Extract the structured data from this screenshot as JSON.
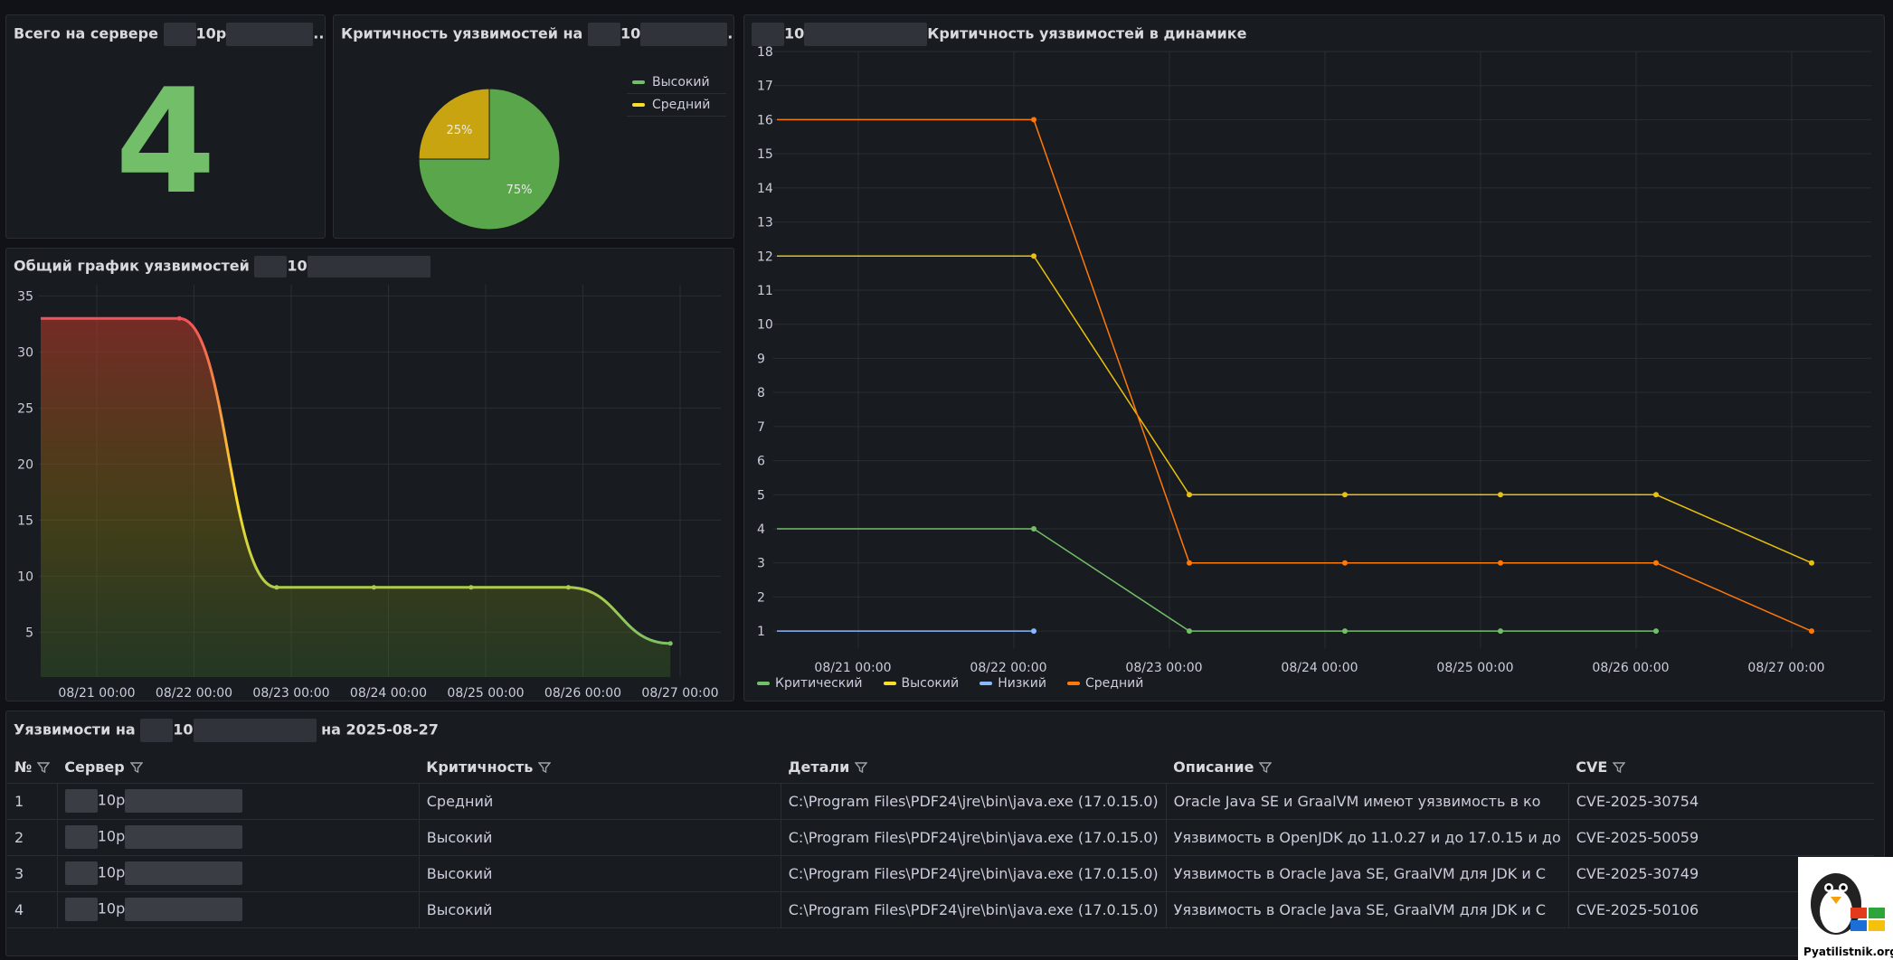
{
  "stat_panel": {
    "title": "Всего на сервере",
    "title_masked": "10р",
    "title_suffix": "...",
    "value": "4"
  },
  "pie_panel": {
    "title": "Критичность уязвимостей на",
    "title_masked": "10",
    "title_suffix": "...",
    "slice_labels": [
      "75%",
      "25%"
    ],
    "legend": [
      {
        "name": "Высокий",
        "color": "#73bf69"
      },
      {
        "name": "Средний",
        "color": "#fade2a"
      }
    ]
  },
  "area_panel": {
    "title": "Общий график уязвимостей",
    "title_masked": "10"
  },
  "dynamics_panel": {
    "title_masked": "10",
    "title": "Критичность уязвимостей в динамике",
    "legend": [
      {
        "name": "Критический",
        "color": "#73bf69"
      },
      {
        "name": "Высокий",
        "color": "#fade2a"
      },
      {
        "name": "Низкий",
        "color": "#8ab8ff"
      },
      {
        "name": "Средний",
        "color": "#ff780a"
      }
    ]
  },
  "table_panel": {
    "title_prefix": "Уязвимости на",
    "title_masked": "10",
    "title_suffix": "на 2025-08-27",
    "columns": [
      "№",
      "Сервер",
      "Критичность",
      "Детали",
      "Описание",
      "CVE"
    ],
    "rows": [
      {
        "num": "1",
        "server": "10р",
        "severity": "Средний",
        "details": "C:\\Program Files\\PDF24\\jre\\bin\\java.exe (17.0.15.0)",
        "description": "Oracle Java SE и GraalVM имеют уязвимость в ко",
        "cve": "CVE-2025-30754"
      },
      {
        "num": "2",
        "server": "10р",
        "severity": "Высокий",
        "details": "C:\\Program Files\\PDF24\\jre\\bin\\java.exe (17.0.15.0)",
        "description": "Уязвимость в OpenJDK до 11.0.27 и до 17.0.15 и до",
        "cve": "CVE-2025-50059"
      },
      {
        "num": "3",
        "server": "10р",
        "severity": "Высокий",
        "details": "C:\\Program Files\\PDF24\\jre\\bin\\java.exe (17.0.15.0)",
        "description": "Уязвимость в Oracle Java SE, GraalVM для JDK и С",
        "cve": "CVE-2025-30749"
      },
      {
        "num": "4",
        "server": "10р",
        "severity": "Высокий",
        "details": "C:\\Program Files\\PDF24\\jre\\bin\\java.exe (17.0.15.0)",
        "description": "Уязвимость в Oracle Java SE, GraalVM для JDK и С",
        "cve": "CVE-2025-50106"
      }
    ]
  },
  "watermark": {
    "text": "Pyatilistnik.org"
  },
  "chart_data": [
    {
      "type": "pie",
      "labels": [
        "Высокий",
        "Средний"
      ],
      "values": [
        75,
        25
      ],
      "colors": [
        "#5aa64b",
        "#c8a411"
      ]
    },
    {
      "type": "area",
      "x": [
        "08/21 00:00",
        "08/22 00:00",
        "08/23 00:00",
        "08/24 00:00",
        "08/25 00:00",
        "08/26 00:00",
        "08/27 00:00"
      ],
      "x_positions": [
        -0.15,
        0.85,
        1.85,
        2.85,
        3.85,
        4.85,
        5.9
      ],
      "values": [
        33,
        33,
        9,
        9,
        9,
        9,
        4
      ],
      "y_ticks": [
        5,
        10,
        15,
        20,
        25,
        30,
        35
      ],
      "ylim": [
        1,
        36
      ]
    },
    {
      "type": "line",
      "x": [
        "08/21 00:00",
        "08/22 00:00",
        "08/23 00:00",
        "08/24 00:00",
        "08/25 00:00",
        "08/26 00:00",
        "08/27 00:00"
      ],
      "y_ticks": [
        1,
        2,
        3,
        4,
        5,
        6,
        7,
        8,
        9,
        10,
        11,
        12,
        13,
        14,
        15,
        16,
        17,
        18
      ],
      "ylim": [
        0.5,
        18
      ],
      "series": [
        {
          "name": "Критический",
          "color": "#73bf69",
          "x": [
            -0.5,
            1.0,
            2.0,
            3.0,
            4.0,
            5.0
          ],
          "values": [
            4,
            4,
            1,
            1,
            1,
            1
          ]
        },
        {
          "name": "Высокий",
          "color": "#e8c10f",
          "x": [
            -0.5,
            1.0,
            2.0,
            3.0,
            4.0,
            5.0,
            6.0
          ],
          "values": [
            12,
            12,
            5,
            5,
            5,
            5,
            3
          ]
        },
        {
          "name": "Низкий",
          "color": "#8ab8ff",
          "x": [
            -0.5,
            1.0
          ],
          "values": [
            1,
            1
          ]
        },
        {
          "name": "Средний",
          "color": "#ff780a",
          "x": [
            -0.5,
            1.0,
            2.0,
            3.0,
            4.0,
            5.0,
            6.0
          ],
          "values": [
            16,
            16,
            3,
            3,
            3,
            3,
            1
          ]
        }
      ]
    }
  ]
}
